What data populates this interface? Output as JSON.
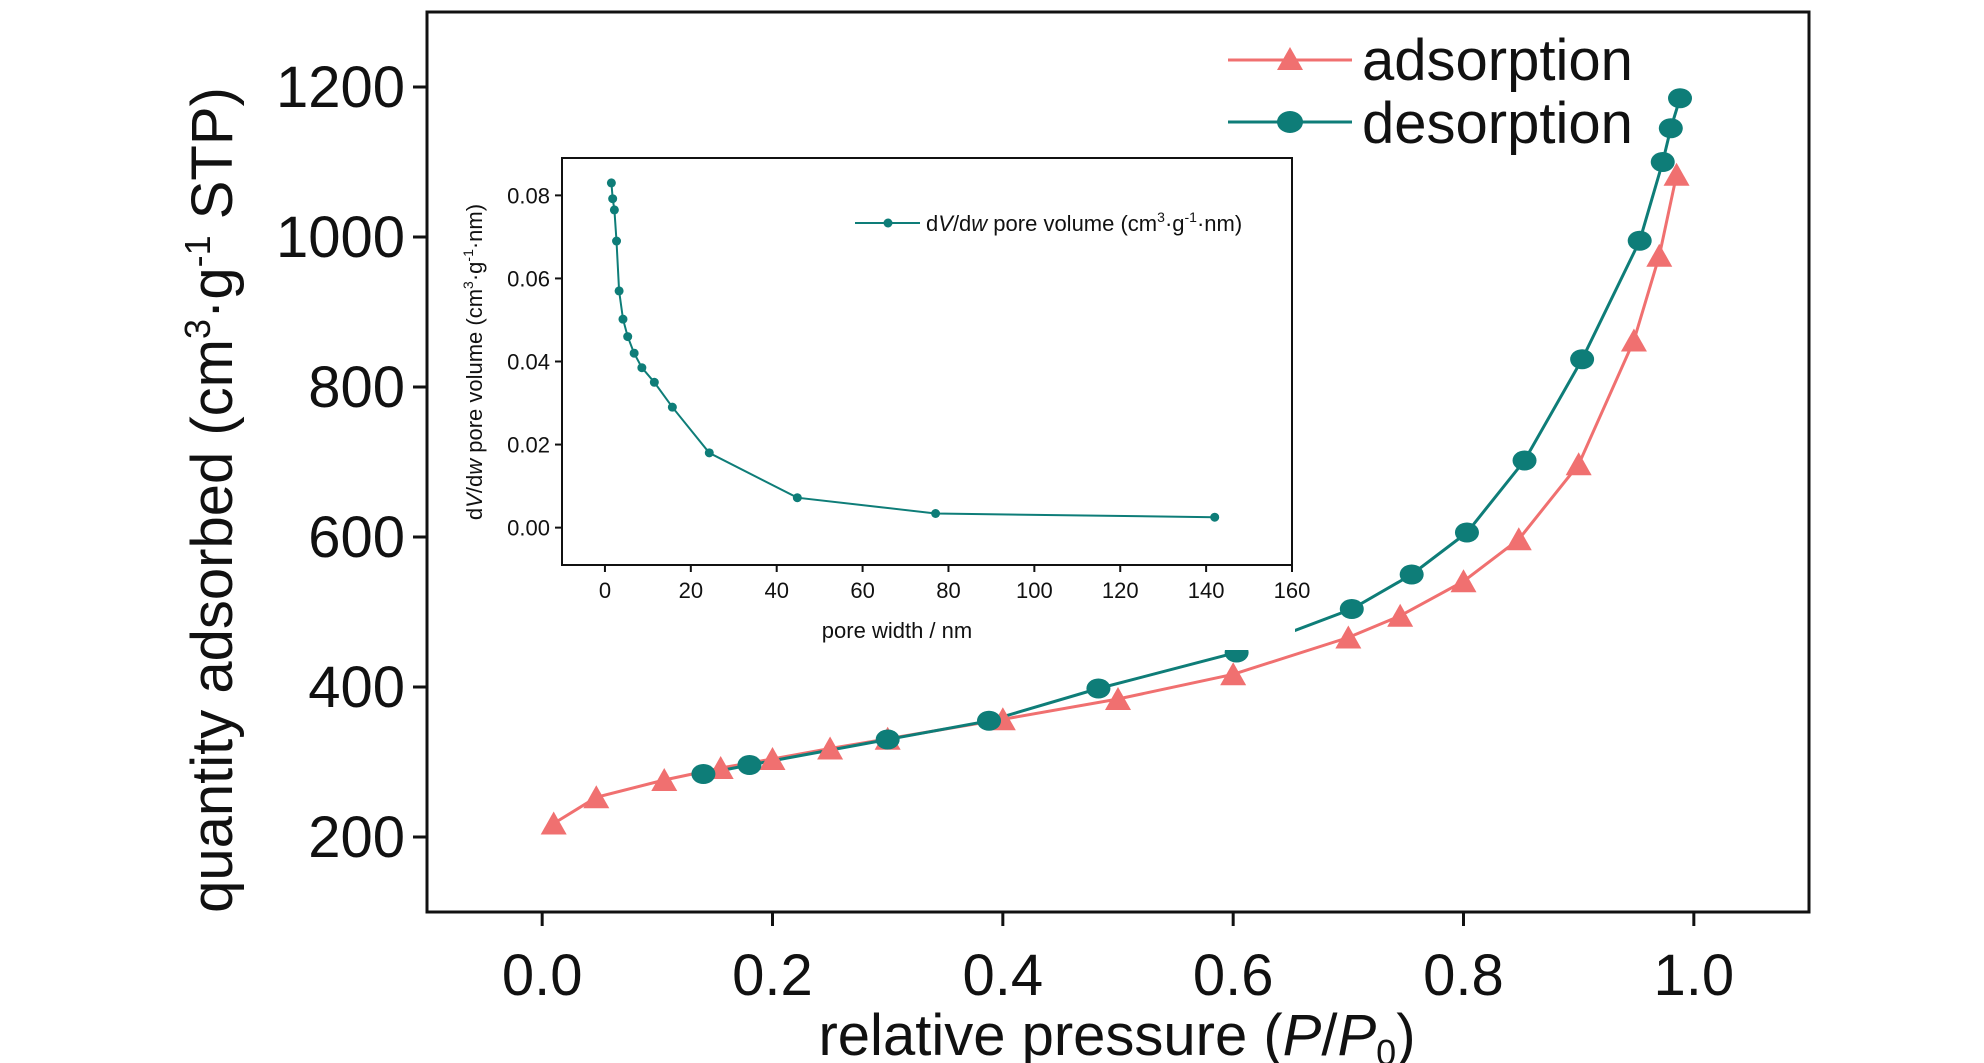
{
  "colors": {
    "adsorption": "#F07070",
    "desorption": "#0E7D78",
    "axis": "#111111"
  },
  "chart_data": [
    {
      "type": "line",
      "xlabel": {
        "pre": "relative pressure (",
        "p": "P",
        "slash": "/",
        "p0": "P",
        "sub": "0",
        "post": ")"
      },
      "ylabel": {
        "pre": "quantity adsorbed (cm",
        "sup1": "3",
        "mid": "·g",
        "sup2": "-1",
        "post": " STP)"
      },
      "xlim": [
        -0.1,
        1.1
      ],
      "ylim": [
        100,
        1300
      ],
      "xticks": [
        "0.0",
        "0.2",
        "0.4",
        "0.6",
        "0.8",
        "1.0"
      ],
      "yticks": [
        "200",
        "400",
        "600",
        "800",
        "1000",
        "1200"
      ],
      "legend_position": "top-right",
      "series": [
        {
          "name": "adsorption",
          "marker": "triangle",
          "x": [
            0.01,
            0.047,
            0.106,
            0.155,
            0.2,
            0.25,
            0.3,
            0.4,
            0.5,
            0.6,
            0.7,
            0.745,
            0.8,
            0.848,
            0.9,
            0.948,
            0.97,
            0.985
          ],
          "y": [
            218,
            253,
            276,
            292,
            304,
            318,
            331,
            357,
            384,
            417,
            466,
            495,
            541,
            597,
            697,
            862,
            975,
            1083
          ]
        },
        {
          "name": "desorption",
          "marker": "circle",
          "x": [
            0.14,
            0.18,
            0.3,
            0.388,
            0.483,
            0.603,
            0.703,
            0.755,
            0.803,
            0.853,
            0.903,
            0.953,
            0.973,
            0.98,
            0.988
          ],
          "y": [
            284,
            296,
            330,
            355,
            398,
            446,
            504,
            550,
            606,
            702,
            837,
            995,
            1100,
            1145,
            1185
          ]
        }
      ]
    },
    {
      "type": "line",
      "xlabel": "pore width / nm",
      "ylabel": {
        "d1": "d",
        "V": "V",
        "slash": "/d",
        "w": "w",
        "pre": " pore volume (cm",
        "sup1": "3",
        "mid": "·g",
        "sup2": "-1",
        "post": "·nm)"
      },
      "xlim": [
        -10,
        160
      ],
      "ylim": [
        -0.009,
        0.089
      ],
      "xticks": [
        "0",
        "20",
        "40",
        "60",
        "80",
        "100",
        "120",
        "140",
        "160"
      ],
      "yticks": [
        "0.00",
        "0.02",
        "0.04",
        "0.06",
        "0.08"
      ],
      "legend_position": "top-right",
      "series": [
        {
          "name": {
            "d1": "d",
            "V": "V",
            "slash": "/d",
            "w": "w",
            "pre": " pore volume (cm",
            "sup1": "3",
            "mid": "·g",
            "sup2": "-1",
            "post": "·nm)"
          },
          "marker": "circle",
          "x": [
            1.5,
            1.8,
            2.2,
            2.7,
            3.3,
            4.2,
            5.3,
            6.8,
            8.6,
            11.5,
            15.7,
            24.3,
            44.8,
            77.0,
            142.0
          ],
          "y": [
            0.083,
            0.0792,
            0.0765,
            0.069,
            0.057,
            0.0502,
            0.046,
            0.042,
            0.0385,
            0.035,
            0.029,
            0.018,
            0.0072,
            0.0034,
            0.0025
          ]
        }
      ]
    }
  ]
}
